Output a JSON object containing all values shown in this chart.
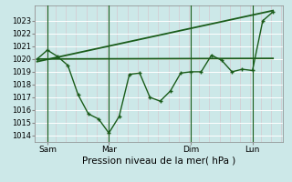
{
  "background_color": "#cce8e8",
  "plot_bg_color": "#cce8e8",
  "grid_color": "#ffffff",
  "line_color": "#1a5c1a",
  "xlabel": "Pression niveau de la mer( hPa )",
  "ylim": [
    1013.5,
    1024.2
  ],
  "yticks": [
    1014,
    1015,
    1016,
    1017,
    1018,
    1019,
    1020,
    1021,
    1022,
    1023
  ],
  "x_tick_labels": [
    "Sam",
    "Mar",
    "Dim",
    "Lun"
  ],
  "x_tick_positions": [
    0.5,
    3.5,
    7.5,
    10.5
  ],
  "x_vlines": [
    0.5,
    3.5,
    7.5,
    10.5
  ],
  "series1_x": [
    0.0,
    0.5,
    1.0,
    1.5,
    2.0,
    2.5,
    3.0,
    3.5,
    4.0,
    4.5,
    5.0,
    5.5,
    6.0,
    6.5,
    7.0,
    7.5,
    8.0,
    8.5,
    9.0,
    9.5,
    10.0,
    10.5,
    11.0,
    11.5
  ],
  "series1_y": [
    1020.0,
    1020.7,
    1020.2,
    1019.5,
    1017.2,
    1015.7,
    1015.3,
    1014.2,
    1015.5,
    1018.8,
    1018.9,
    1017.0,
    1016.7,
    1017.5,
    1018.9,
    1019.0,
    1019.0,
    1020.3,
    1019.9,
    1019.0,
    1019.2,
    1019.1,
    1023.0,
    1023.7
  ],
  "series2_x": [
    0.0,
    11.5
  ],
  "series2_y": [
    1020.0,
    1020.05
  ],
  "series3_x": [
    0.0,
    11.5
  ],
  "series3_y": [
    1019.8,
    1023.8
  ],
  "xlim": [
    -0.1,
    12.0
  ]
}
